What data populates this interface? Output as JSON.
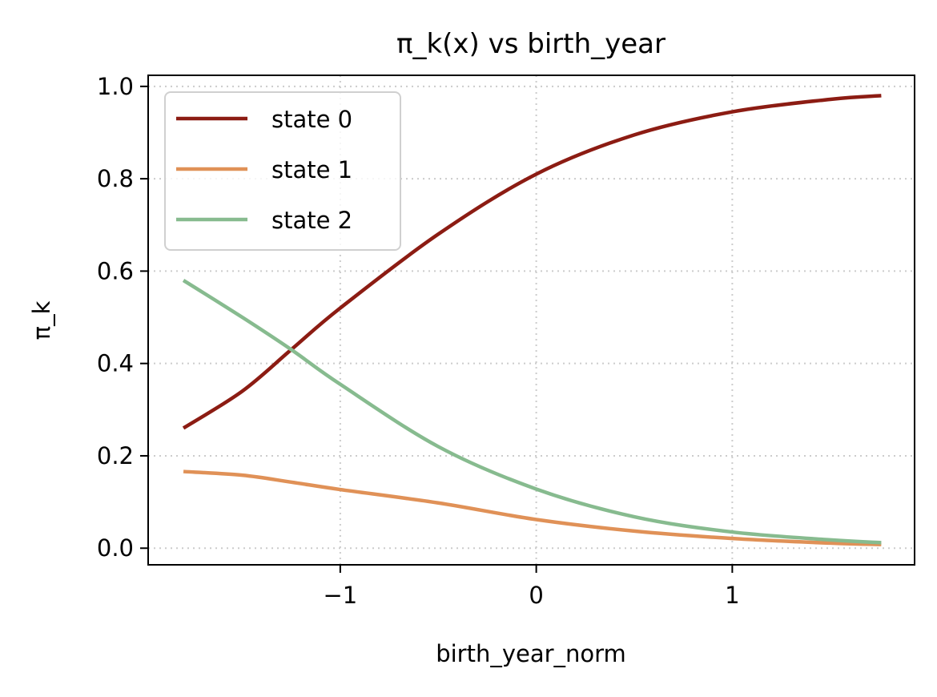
{
  "chart_data": {
    "type": "line",
    "title": "π_k(x) vs birth_year",
    "xlabel": "birth_year_norm",
    "ylabel": "π_k",
    "xlim": [
      -1.98,
      1.93
    ],
    "ylim": [
      -0.036,
      1.024
    ],
    "xticks": [
      -1,
      0,
      1
    ],
    "xtick_labels": [
      "−1",
      "0",
      "1"
    ],
    "yticks": [
      0,
      0.2,
      0.4,
      0.6,
      0.8,
      1.0
    ],
    "ytick_labels": [
      "0.0",
      "0.2",
      "0.4",
      "0.6",
      "0.8",
      "1.0"
    ],
    "grid": true,
    "legend_position": "top-left",
    "x": [
      -1.8,
      -1.5,
      -1.25,
      -1.0,
      -0.5,
      0.0,
      0.5,
      1.0,
      1.5,
      1.76
    ],
    "series": [
      {
        "name": "state 0",
        "color": "#8c1c13",
        "values": [
          0.26,
          0.34,
          0.43,
          0.52,
          0.68,
          0.81,
          0.895,
          0.945,
          0.972,
          0.98
        ]
      },
      {
        "name": "state 1",
        "color": "#e09157",
        "values": [
          0.166,
          0.158,
          0.143,
          0.127,
          0.098,
          0.062,
          0.037,
          0.021,
          0.011,
          0.008
        ]
      },
      {
        "name": "state 2",
        "color": "#87bb8f",
        "values": [
          0.58,
          0.5,
          0.43,
          0.355,
          0.22,
          0.128,
          0.068,
          0.035,
          0.018,
          0.012
        ]
      }
    ]
  }
}
